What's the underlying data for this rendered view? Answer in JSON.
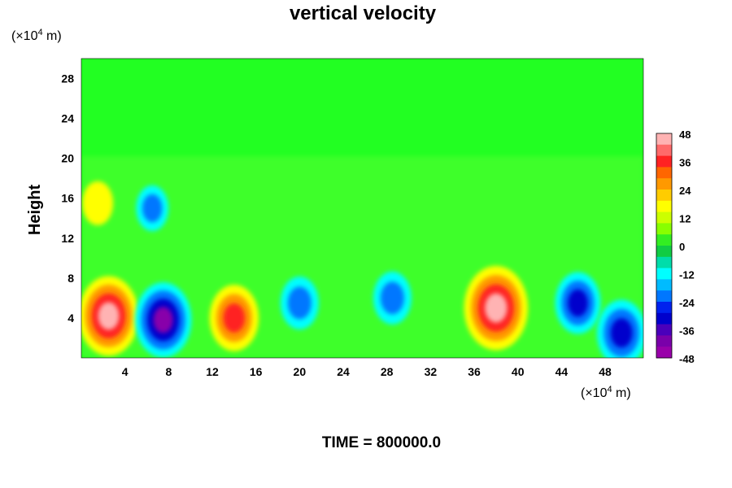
{
  "chart_data": {
    "type": "heatmap",
    "title": "vertical velocity",
    "ylabel": "Height",
    "x_unit": "(×10",
    "x_unit_exp": "4",
    "x_unit_tail": " m)",
    "y_unit": "(×10",
    "y_unit_exp": "4",
    "y_unit_tail": " m)",
    "xlim": [
      0,
      51.5
    ],
    "ylim": [
      0,
      30
    ],
    "x_ticks": [
      "4",
      "8",
      "12",
      "16",
      "20",
      "24",
      "28",
      "32",
      "36",
      "40",
      "44",
      "48"
    ],
    "y_ticks": [
      "4",
      "8",
      "12",
      "16",
      "20",
      "24",
      "28"
    ],
    "colorbar": {
      "range": [
        -48,
        48
      ],
      "ticks": [
        "48",
        "36",
        "24",
        "12",
        "0",
        "-12",
        "-24",
        "-36",
        "-48"
      ]
    },
    "features": [
      {
        "x": 2.5,
        "y": 4.2,
        "value": 60
      },
      {
        "x": 7.5,
        "y": 3.8,
        "value": -55
      },
      {
        "x": 14.0,
        "y": 4.0,
        "value": 45
      },
      {
        "x": 20.0,
        "y": 5.5,
        "value": -30
      },
      {
        "x": 28.5,
        "y": 6.0,
        "value": -30
      },
      {
        "x": 38.0,
        "y": 5.0,
        "value": 65
      },
      {
        "x": 45.5,
        "y": 5.5,
        "value": -40
      },
      {
        "x": 49.5,
        "y": 2.5,
        "value": -45
      },
      {
        "x": 1.5,
        "y": 15.5,
        "value": 20
      },
      {
        "x": 6.5,
        "y": 15.0,
        "value": -22
      }
    ],
    "footer": "TIME = 800000.0"
  }
}
